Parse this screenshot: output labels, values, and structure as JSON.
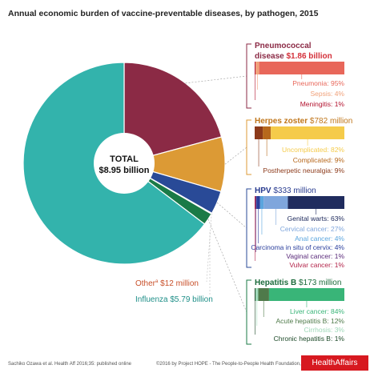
{
  "chart_data": {
    "type": "pie",
    "title": "Annual economic burden of vaccine-preventable diseases, by pathogen, 2015",
    "total_label": "TOTAL",
    "total_value": "$8.95 billion",
    "slices": [
      {
        "name": "Influenza",
        "value": 5790,
        "label": "Influenza",
        "amount": "$5.79 billion",
        "color": "#33b3ac"
      },
      {
        "name": "Pneumococcal disease",
        "value": 1860,
        "label": "Pneumococcal disease",
        "amount": "$1.86 billion",
        "color": "#8b2a45"
      },
      {
        "name": "Herpes zoster",
        "value": 782,
        "label": "Herpes zoster",
        "amount": "$782 million",
        "color": "#dc9a35"
      },
      {
        "name": "HPV",
        "value": 333,
        "label": "HPV",
        "amount": "$333 million",
        "color": "#294a97"
      },
      {
        "name": "Hepatitis B",
        "value": 173,
        "label": "Hepatitis B",
        "amount": "$173 million",
        "color": "#1a7a46"
      },
      {
        "name": "Other",
        "value": 12,
        "label": "Other",
        "amount": "$12 million",
        "color": "#c8502a"
      }
    ],
    "breakdowns": [
      {
        "name": "Pneumococcal disease",
        "title_line1": "Pneumococcal",
        "title_line2": "disease",
        "amount": "$1.86 billion",
        "title_color": "#8b2a45",
        "amount_color": "#d4303a",
        "items": [
          {
            "label": "Pneumonia: 95%",
            "value": 95,
            "color": "#e8675a"
          },
          {
            "label": "Sepsis: 4%",
            "value": 4,
            "color": "#f0a17a"
          },
          {
            "label": "Meningitis: 1%",
            "value": 1,
            "color": "#b3132f"
          }
        ]
      },
      {
        "name": "Herpes zoster",
        "title": "Herpes zoster",
        "amount": "$782 million",
        "title_color": "#c0761a",
        "amount_color": "#c0761a",
        "items": [
          {
            "label": "Uncomplicated: 82%",
            "value": 82,
            "color": "#f5cb4a"
          },
          {
            "label": "Complicated: 9%",
            "value": 9,
            "color": "#b7681c"
          },
          {
            "label": "Postherpetic neuralgia: 9%",
            "value": 9,
            "color": "#8c3a1a"
          }
        ]
      },
      {
        "name": "HPV",
        "title": "HPV",
        "amount": "$333 million",
        "title_color": "#273a8f",
        "amount_color": "#273a8f",
        "items": [
          {
            "label": "Genital warts: 63%",
            "value": 63,
            "color": "#202c5e"
          },
          {
            "label": "Cervical cancer: 27%",
            "value": 27,
            "color": "#7fa6dc"
          },
          {
            "label": "Anal cancer: 4%",
            "value": 4,
            "color": "#5aa5de"
          },
          {
            "label": "Carcinoma in situ of cervix: 4%",
            "value": 4,
            "color": "#2a3e9c"
          },
          {
            "label": "Vaginal cancer: 1%",
            "value": 1,
            "color": "#5a2a7a"
          },
          {
            "label": "Vulvar cancer: 1%",
            "value": 1,
            "color": "#b3244a"
          }
        ]
      },
      {
        "name": "Hepatitis B",
        "title": "Hepatitis B",
        "amount": "$173 million",
        "title_color": "#1a6a3a",
        "amount_color": "#1a6a3a",
        "items": [
          {
            "label": "Liver cancer: 84%",
            "value": 84,
            "color": "#39b578"
          },
          {
            "label": "Acute hepatitis B: 12%",
            "value": 12,
            "color": "#4f7a4a"
          },
          {
            "label": "Cirrhosis: 3%",
            "value": 3,
            "color": "#9ed8b8"
          },
          {
            "label": "Chronic hepatitis B: 1%",
            "value": 1,
            "color": "#1d4a28"
          }
        ]
      }
    ],
    "other_note": "a"
  },
  "footer": {
    "citation": "Sachiko Ozawa et al. Health Aff 2016;35: published online",
    "copyright": "©2016 by Project HOPE - The People-to-People Health Foundation, Inc.",
    "brand": "HealthAffairs"
  }
}
